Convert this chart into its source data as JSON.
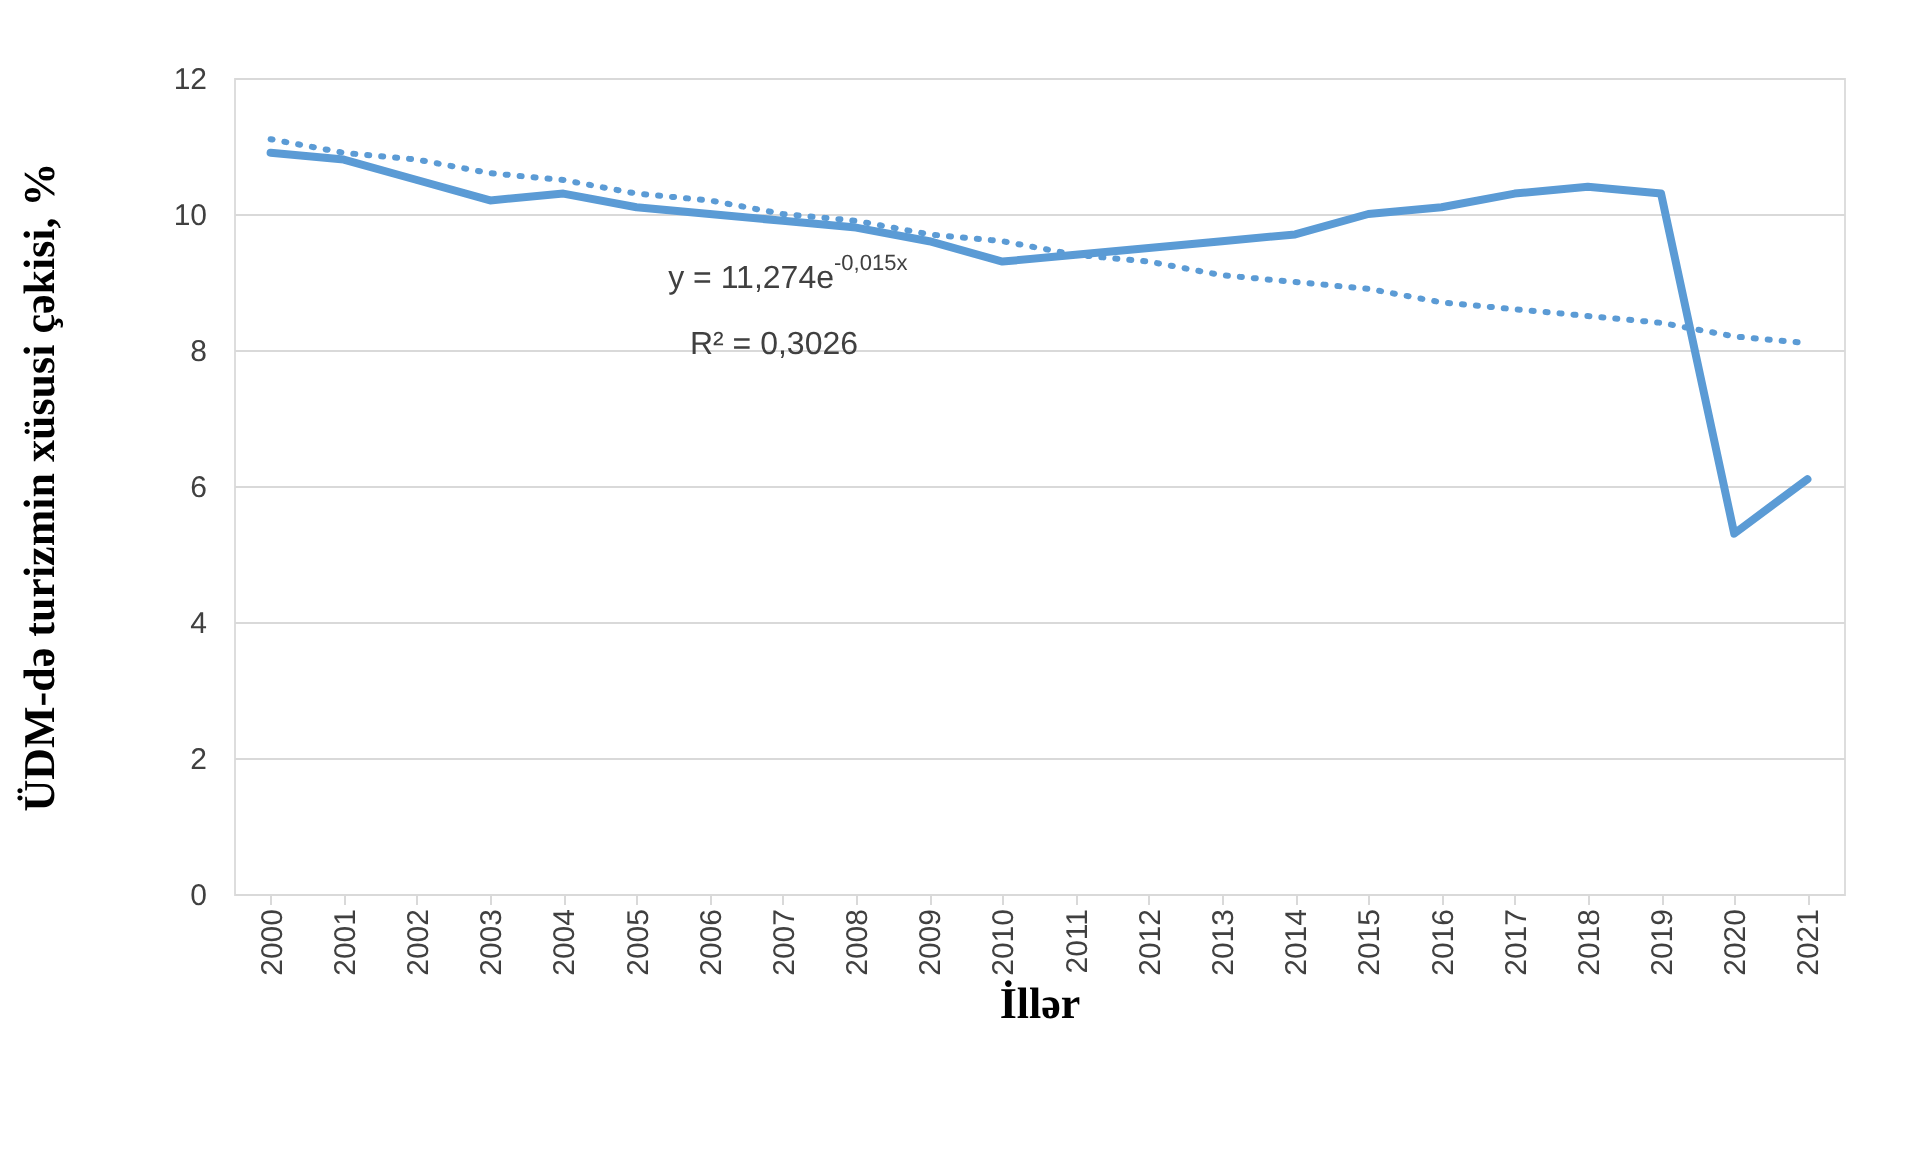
{
  "chart_data": {
    "type": "line",
    "xlabel": "İllər",
    "ylabel": "ÜDM-də turizmin xüsusi çəkisi, %",
    "categories": [
      "2000",
      "2001",
      "2002",
      "2003",
      "2004",
      "2005",
      "2006",
      "2007",
      "2008",
      "2009",
      "2010",
      "2011",
      "2012",
      "2013",
      "2014",
      "2015",
      "2016",
      "2017",
      "2018",
      "2019",
      "2020",
      "2021"
    ],
    "series": [
      {
        "color": "#5b9bd5",
        "line_style": "solid",
        "values": [
          10.9,
          10.8,
          10.5,
          10.2,
          10.3,
          10.1,
          10.0,
          9.9,
          9.8,
          9.6,
          9.3,
          9.4,
          9.5,
          9.6,
          9.7,
          10.0,
          10.1,
          10.3,
          10.4,
          10.3,
          5.3,
          6.1
        ]
      },
      {
        "type": "line",
        "color": "#5b9bd5",
        "line_style": "dotted",
        "values": [
          11.1,
          10.9,
          10.8,
          10.6,
          10.5,
          10.3,
          10.2,
          10.0,
          9.9,
          9.7,
          9.6,
          9.4,
          9.3,
          9.1,
          9.0,
          8.9,
          8.7,
          8.6,
          8.5,
          8.4,
          8.2,
          8.1
        ]
      }
    ],
    "ylim": [
      0,
      12
    ],
    "yticks": [
      0,
      2,
      4,
      6,
      8,
      10,
      12
    ],
    "grid": "y",
    "marker": "none",
    "annotations": [
      "y = 11,274e$^{-0,015x}$",
      "R² = 0,3026"
    ]
  }
}
